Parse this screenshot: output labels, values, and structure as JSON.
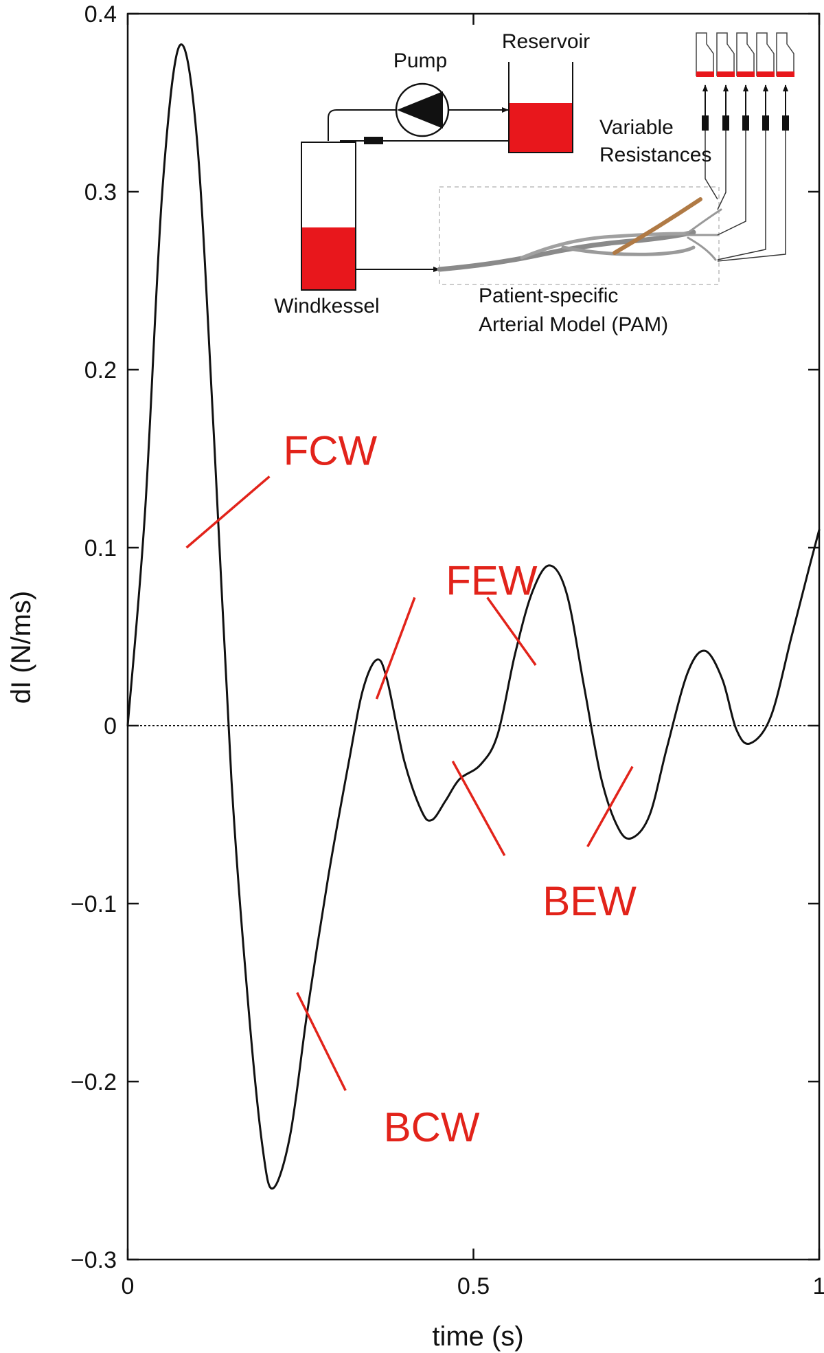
{
  "chart_data": {
    "type": "line",
    "xlabel": "time (s)",
    "ylabel": "dI (N/ms)",
    "xlim": [
      0,
      1
    ],
    "ylim": [
      -0.3,
      0.4
    ],
    "xticks": [
      0,
      0.5,
      1
    ],
    "xtick_labels": [
      "0",
      "0.5",
      "1"
    ],
    "yticks": [
      -0.3,
      -0.2,
      -0.1,
      0,
      0.1,
      0.2,
      0.3,
      0.4
    ],
    "ytick_labels": [
      "−0.3",
      "−0.2",
      "−0.1",
      "0",
      "0.1",
      "0.2",
      "0.3",
      "0.4"
    ],
    "grid": false,
    "zero_line": true,
    "series": [
      {
        "color": "#111111",
        "points": [
          [
            0.0,
            0.0
          ],
          [
            0.025,
            0.12
          ],
          [
            0.05,
            0.3
          ],
          [
            0.075,
            0.382
          ],
          [
            0.1,
            0.33
          ],
          [
            0.125,
            0.16
          ],
          [
            0.15,
            -0.03
          ],
          [
            0.175,
            -0.16
          ],
          [
            0.195,
            -0.237
          ],
          [
            0.21,
            -0.26
          ],
          [
            0.235,
            -0.23
          ],
          [
            0.26,
            -0.16
          ],
          [
            0.29,
            -0.085
          ],
          [
            0.32,
            -0.02
          ],
          [
            0.34,
            0.02
          ],
          [
            0.36,
            0.037
          ],
          [
            0.375,
            0.026
          ],
          [
            0.4,
            -0.02
          ],
          [
            0.425,
            -0.048
          ],
          [
            0.44,
            -0.053
          ],
          [
            0.46,
            -0.042
          ],
          [
            0.48,
            -0.03
          ],
          [
            0.51,
            -0.022
          ],
          [
            0.535,
            -0.005
          ],
          [
            0.56,
            0.04
          ],
          [
            0.585,
            0.075
          ],
          [
            0.61,
            0.09
          ],
          [
            0.635,
            0.074
          ],
          [
            0.66,
            0.022
          ],
          [
            0.685,
            -0.03
          ],
          [
            0.71,
            -0.058
          ],
          [
            0.73,
            -0.063
          ],
          [
            0.755,
            -0.05
          ],
          [
            0.78,
            -0.012
          ],
          [
            0.81,
            0.03
          ],
          [
            0.835,
            0.042
          ],
          [
            0.86,
            0.026
          ],
          [
            0.88,
            -0.002
          ],
          [
            0.9,
            -0.01
          ],
          [
            0.93,
            0.005
          ],
          [
            0.96,
            0.05
          ],
          [
            0.985,
            0.088
          ],
          [
            1.0,
            0.11
          ]
        ]
      }
    ],
    "annotations": [
      {
        "text": "FCW",
        "x": 0.225,
        "y": 0.155,
        "pointers": [
          [
            [
              0.085,
              0.1
            ],
            [
              0.205,
              0.14
            ]
          ]
        ]
      },
      {
        "text": "FEW",
        "x": 0.46,
        "y": 0.082,
        "pointers": [
          [
            [
              0.36,
              0.015
            ],
            [
              0.415,
              0.072
            ]
          ],
          [
            [
              0.52,
              0.072
            ],
            [
              0.59,
              0.034
            ]
          ]
        ]
      },
      {
        "text": "BEW",
        "x": 0.6,
        "y": -0.098,
        "pointers": [
          [
            [
              0.47,
              -0.02
            ],
            [
              0.545,
              -0.073
            ]
          ],
          [
            [
              0.665,
              -0.068
            ],
            [
              0.73,
              -0.023
            ]
          ]
        ]
      },
      {
        "text": "BCW",
        "x": 0.37,
        "y": -0.225,
        "pointers": [
          [
            [
              0.245,
              -0.15
            ],
            [
              0.315,
              -0.205
            ]
          ]
        ]
      }
    ],
    "inset": {
      "labels": {
        "pump": "Pump",
        "reservoir": "Reservoir",
        "variable_resistances_line1": "Variable",
        "variable_resistances_line2": "Resistances",
        "windkessel": "Windkessel",
        "pam_line1": "Patient-specific",
        "pam_line2": "Arterial Model (PAM)"
      },
      "fluid_color": "#e8171c"
    }
  }
}
